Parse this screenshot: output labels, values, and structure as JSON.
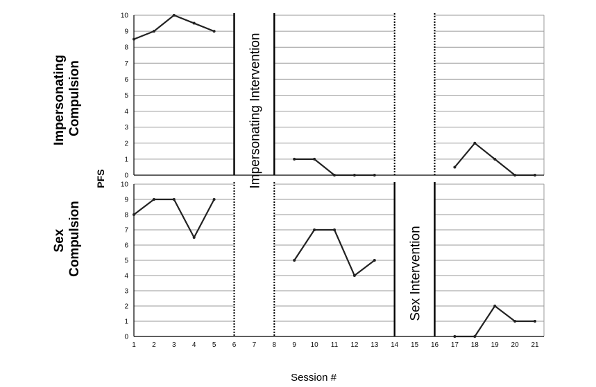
{
  "chart_data": {
    "type": "line",
    "xlabel": "Session #",
    "ylabel": "PFS",
    "ylim": [
      0,
      10
    ],
    "yticks": [
      "0",
      "1",
      "2",
      "3",
      "4",
      "5",
      "6",
      "7",
      "8",
      "9",
      "10"
    ],
    "xticks": [
      "1",
      "2",
      "3",
      "4",
      "5",
      "6",
      "7",
      "8",
      "9",
      "10",
      "11",
      "12",
      "13",
      "14",
      "15",
      "16",
      "17",
      "18",
      "19",
      "20",
      "21"
    ],
    "grid": true,
    "panels": [
      {
        "row_label_lines": [
          "Impersonating",
          "Compulsion"
        ],
        "phase_label": "Impersonating Intervention",
        "segments": [
          {
            "x": [
              1,
              2,
              3,
              4,
              5
            ],
            "y": [
              8.5,
              9,
              10,
              9.5,
              9
            ]
          },
          {
            "x": [
              9,
              10,
              11,
              12,
              13
            ],
            "y": [
              1,
              1,
              0,
              0,
              0
            ]
          },
          {
            "x": [
              17,
              18,
              19,
              20,
              21
            ],
            "y": [
              0.5,
              2,
              1,
              0,
              0
            ]
          }
        ]
      },
      {
        "row_label_lines": [
          "Sex",
          "Compulsion"
        ],
        "phase_label": "Sex Intervention",
        "segments": [
          {
            "x": [
              1,
              2,
              3,
              4,
              5
            ],
            "y": [
              8,
              9,
              9,
              6.5,
              9
            ]
          },
          {
            "x": [
              9,
              10,
              11,
              12,
              13
            ],
            "y": [
              5,
              7,
              7,
              4,
              5
            ]
          },
          {
            "x": [
              17,
              18,
              19,
              20,
              21
            ],
            "y": [
              0,
              0,
              2,
              1,
              1
            ]
          }
        ]
      }
    ],
    "phase_lines": [
      {
        "panel": 0,
        "x": 6,
        "style": "solid"
      },
      {
        "panel": 0,
        "x": 8,
        "style": "solid"
      },
      {
        "panel": 0,
        "x": 14,
        "style": "dotted"
      },
      {
        "panel": 0,
        "x": 16,
        "style": "dotted"
      },
      {
        "panel": 1,
        "x": 6,
        "style": "dotted"
      },
      {
        "panel": 1,
        "x": 8,
        "style": "dotted"
      },
      {
        "panel": 1,
        "x": 14,
        "style": "solid"
      },
      {
        "panel": 1,
        "x": 16,
        "style": "solid"
      }
    ]
  },
  "colors": {
    "line": "#222222",
    "grid": "#9a9a9a",
    "axis": "#000000"
  }
}
